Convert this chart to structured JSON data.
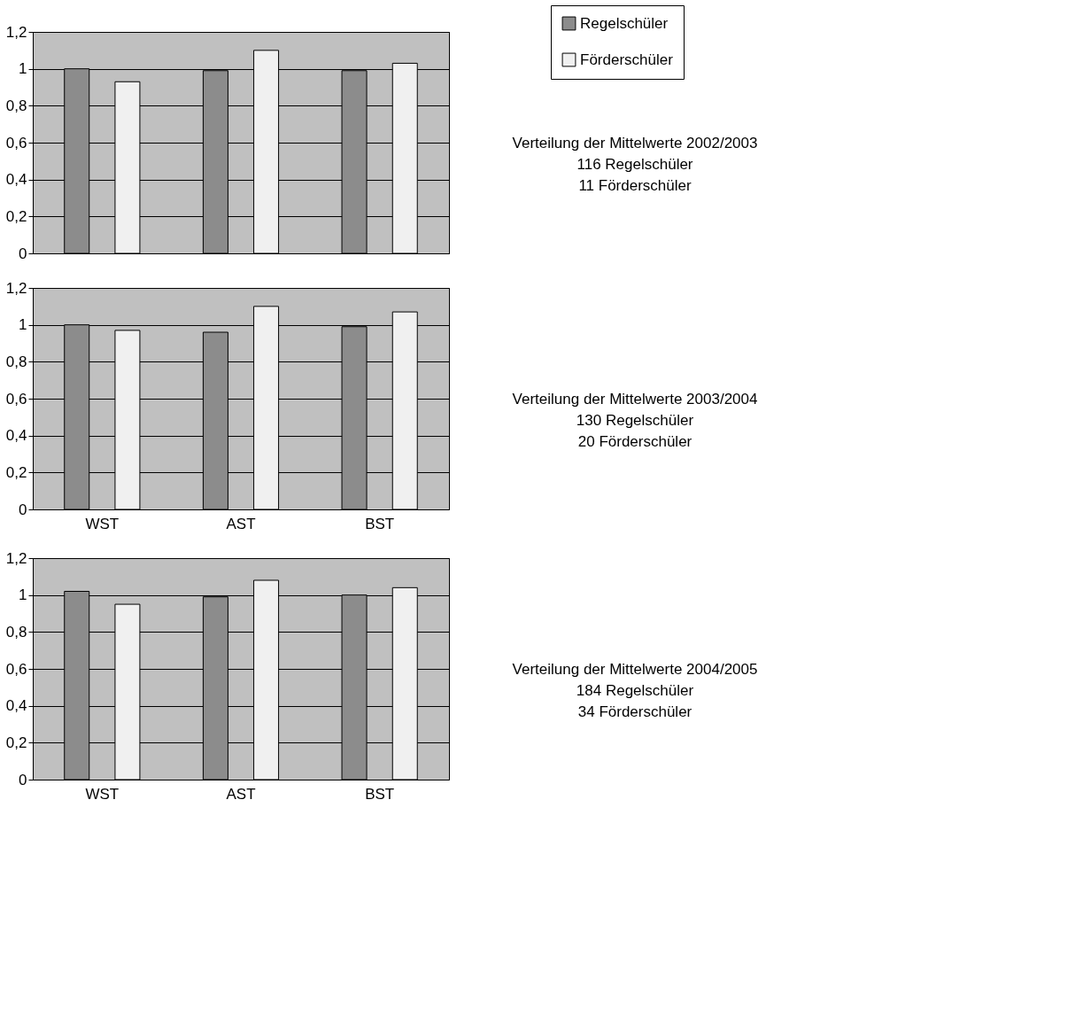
{
  "chart_data": [
    {
      "type": "bar",
      "categories": [
        null,
        null,
        null
      ],
      "tick_labels": "y",
      "ylim": [
        0,
        1.2
      ],
      "yticks": [
        0,
        {
          "value": 0.2,
          "label": "0,2"
        },
        {
          "value": 0.4,
          "label": "0,4"
        },
        {
          "value": 0.6,
          "label": "0,6"
        },
        {
          "value": 0.8,
          "label": "0,8"
        },
        1,
        {
          "value": 1.2,
          "label": "1,2"
        }
      ],
      "grid": "y",
      "legend": "top right",
      "series": [
        {
          "name": "Regelschüler",
          "color": "#8c8c8c",
          "values": [
            1.0,
            0.99,
            0.99
          ]
        },
        {
          "name": "Förderschüler",
          "color": "#f0f0f0",
          "values": [
            0.93,
            1.1,
            1.03
          ]
        }
      ],
      "annotations": [
        "Verteilung der Mittelwerte 2002/2003",
        "116 Regelschüler",
        "11 Förderschüler"
      ]
    },
    {
      "type": "bar",
      "categories": [
        "WST",
        "AST",
        "BST"
      ],
      "ylim": [
        0,
        1.2
      ],
      "yticks": [
        0,
        {
          "value": 0.2,
          "label": "0,2"
        },
        {
          "value": 0.4,
          "label": "0,4"
        },
        {
          "value": 0.6,
          "label": "0,6"
        },
        {
          "value": 0.8,
          "label": "0,8"
        },
        1,
        {
          "value": 1.2,
          "label": "1,2"
        }
      ],
      "grid": "y",
      "legend": false,
      "series": [
        {
          "color": "#8c8c8c",
          "values": [
            1.0,
            0.96,
            0.99
          ]
        },
        {
          "color": "#f0f0f0",
          "values": [
            0.97,
            1.1,
            1.07
          ]
        }
      ],
      "annotations": [
        "Verteilung der Mittelwerte 2003/2004",
        "130 Regelschüler",
        "20 Förderschüler"
      ]
    },
    {
      "type": "bar",
      "categories": [
        "WST",
        "AST",
        "BST"
      ],
      "ylim": [
        0,
        1.2
      ],
      "yticks": [
        0,
        {
          "value": 0.2,
          "label": "0,2"
        },
        {
          "value": 0.4,
          "label": "0,4"
        },
        {
          "value": 0.6,
          "label": "0,6"
        },
        {
          "value": 0.8,
          "label": "0,8"
        },
        1,
        {
          "value": 1.2,
          "label": "1,2"
        }
      ],
      "grid": "y",
      "legend": false,
      "series": [
        {
          "color": "#8c8c8c",
          "values": [
            1.02,
            0.99,
            1.0
          ]
        },
        {
          "color": "#f0f0f0",
          "values": [
            0.95,
            1.08,
            1.04
          ]
        }
      ],
      "annotations": [
        "Verteilung der Mittelwerte 2004/2005",
        "184 Regelschüler",
        "34 Förderschüler"
      ]
    }
  ]
}
